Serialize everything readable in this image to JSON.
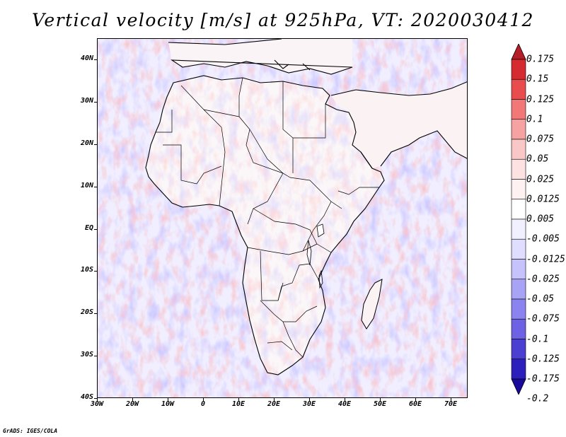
{
  "title": "Vertical velocity [m/s] at 925hPa, VT: 2020030412",
  "credit": "GrADS: IGES/COLA",
  "map": {
    "lat_labels": [
      "40N",
      "30N",
      "20N",
      "10N",
      "EQ",
      "10S",
      "20S",
      "30S",
      "40S"
    ],
    "lon_labels": [
      "30W",
      "20W",
      "10W",
      "0",
      "10E",
      "20E",
      "30E",
      "40E",
      "50E",
      "60E",
      "70E"
    ]
  },
  "legend": {
    "labels": [
      "0.175",
      "0.15",
      "0.125",
      "0.1",
      "0.075",
      "0.05",
      "0.025",
      "0.0125",
      "0.005",
      "-0.005",
      "-0.0125",
      "-0.025",
      "-0.05",
      "-0.075",
      "-0.1",
      "-0.125",
      "-0.175",
      "-0.2"
    ],
    "colors": [
      "#b41e26",
      "#d52a2f",
      "#e94c4c",
      "#f27878",
      "#f7a2a2",
      "#fac7c7",
      "#fde2e2",
      "#fef1f1",
      "#ffffff",
      "#f1f0ff",
      "#e0defe",
      "#c6c2fb",
      "#a9a3f6",
      "#8b83ef",
      "#6d62e3",
      "#4b3fd2",
      "#2d1fbb",
      "#1a0a9c"
    ]
  }
}
